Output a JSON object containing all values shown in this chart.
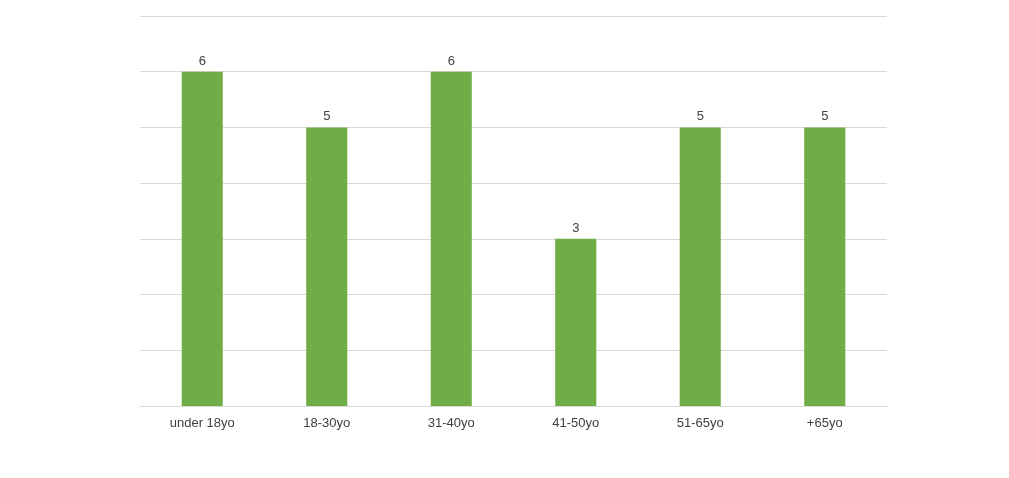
{
  "chart_data": {
    "type": "bar",
    "categories": [
      "under 18yo",
      "18-30yo",
      "31-40yo",
      "41-50yo",
      "51-65yo",
      "+65yo"
    ],
    "values": [
      6,
      5,
      6,
      3,
      5,
      5
    ],
    "color": "#70ad47",
    "ylim": [
      0,
      7
    ],
    "yticks": [
      {
        "value": 0,
        "label": null
      },
      {
        "value": 1,
        "label": null
      },
      {
        "value": 2,
        "label": null
      },
      {
        "value": 3,
        "label": null
      },
      {
        "value": 4,
        "label": null
      },
      {
        "value": 5,
        "label": null
      },
      {
        "value": 6,
        "label": null
      },
      {
        "value": 7,
        "label": null
      }
    ],
    "tick_labels": "x",
    "grid": "y",
    "data_labels": true
  }
}
